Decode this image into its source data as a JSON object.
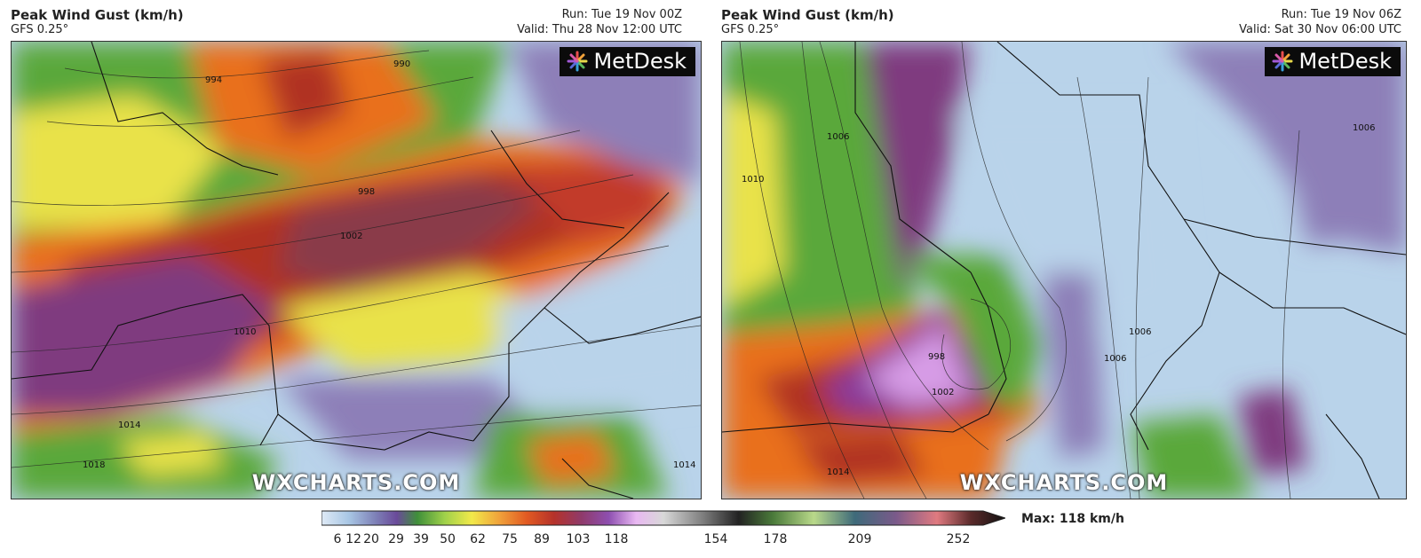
{
  "panels": [
    {
      "title": "Peak Wind Gust (km/h)",
      "model": "GFS 0.25°",
      "run": "Run: Tue 19 Nov 00Z",
      "valid": "Valid: Thu 28 Nov 12:00 UTC",
      "logo": "MetDesk",
      "watermark": "WXCHARTS.COM",
      "contours": [
        "990",
        "994",
        "998",
        "1002",
        "1010",
        "1014",
        "1018",
        "1014"
      ]
    },
    {
      "title": "Peak Wind Gust (km/h)",
      "model": "GFS 0.25°",
      "run": "Run: Tue 19 Nov 06Z",
      "valid": "Valid: Sat 30 Nov 06:00 UTC",
      "logo": "MetDesk",
      "watermark": "WXCHARTS.COM",
      "contours": [
        "1010",
        "1006",
        "1006",
        "1006",
        "1006",
        "998",
        "1002",
        "1014"
      ]
    }
  ],
  "scale": {
    "ticks": [
      "6",
      "12",
      "20",
      "29",
      "39",
      "50",
      "62",
      "75",
      "89",
      "103",
      "118",
      "154",
      "178",
      "209",
      "252"
    ],
    "max_label": "Max: 118 km/h"
  },
  "colors": {
    "calm": "#b9d3ea",
    "light": "#8d7fb8",
    "moderate": "#5aa83a",
    "fresh": "#e9e24a",
    "strong": "#e9701e",
    "gale": "#b03324",
    "storm": "#7f3b7f",
    "violent": "#d79ce6"
  }
}
